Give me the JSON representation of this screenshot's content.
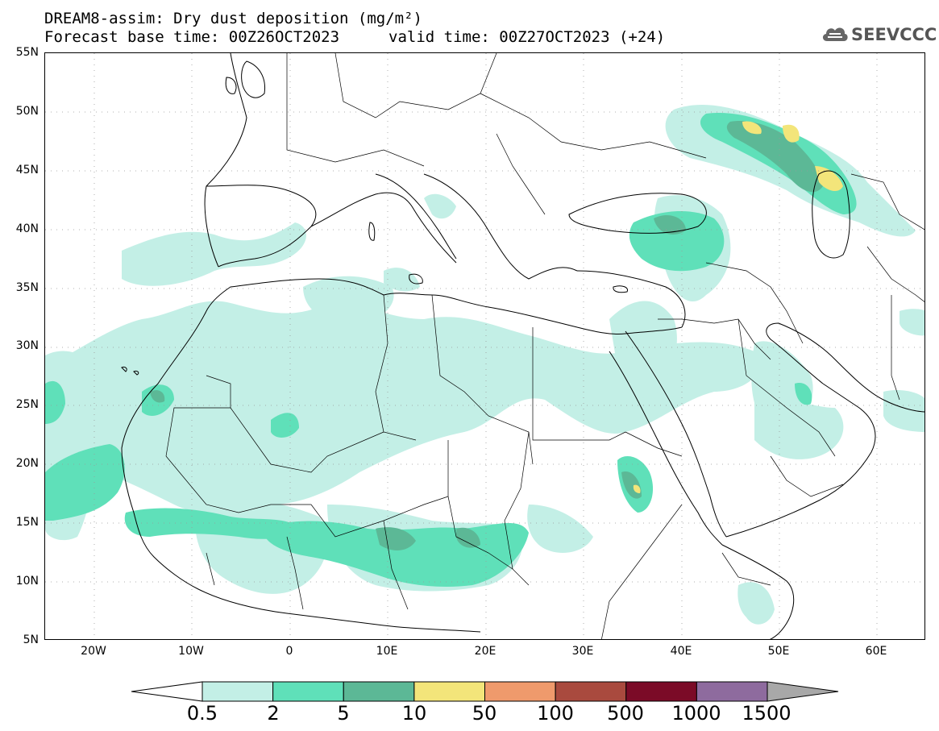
{
  "header": {
    "title": "DREAM8-assim: Dry dust deposition (mg/m²)",
    "base_time": "Forecast base time: 00Z26OCT2023",
    "valid_time": "valid time: 00Z27OCT2023 (+24)"
  },
  "logo": {
    "text": "SEEVCCC",
    "icon": "cloud-icon"
  },
  "map": {
    "lon_range": [
      -25,
      65
    ],
    "lat_range": [
      5,
      55
    ],
    "lat_ticks": [
      "55N",
      "50N",
      "45N",
      "40N",
      "35N",
      "30N",
      "25N",
      "20N",
      "15N",
      "10N",
      "5N"
    ],
    "lat_values": [
      55,
      50,
      45,
      40,
      35,
      30,
      25,
      20,
      15,
      10,
      5
    ],
    "lon_ticks": [
      "20W",
      "10W",
      "0",
      "10E",
      "20E",
      "30E",
      "40E",
      "50E",
      "60E"
    ],
    "lon_values": [
      -20,
      -10,
      0,
      10,
      20,
      30,
      40,
      50,
      60
    ]
  },
  "colorbar": {
    "labels": [
      "0.5",
      "2",
      "5",
      "10",
      "50",
      "100",
      "500",
      "1000",
      "1500"
    ],
    "colors": [
      "#c3efe6",
      "#5fe0b9",
      "#5cb896",
      "#f3e57a",
      "#ef9a6c",
      "#a94a3e",
      "#7b0b27",
      "#8e6b9e"
    ],
    "over_color": "#a8a8a8",
    "under_color": "#ffffff"
  }
}
